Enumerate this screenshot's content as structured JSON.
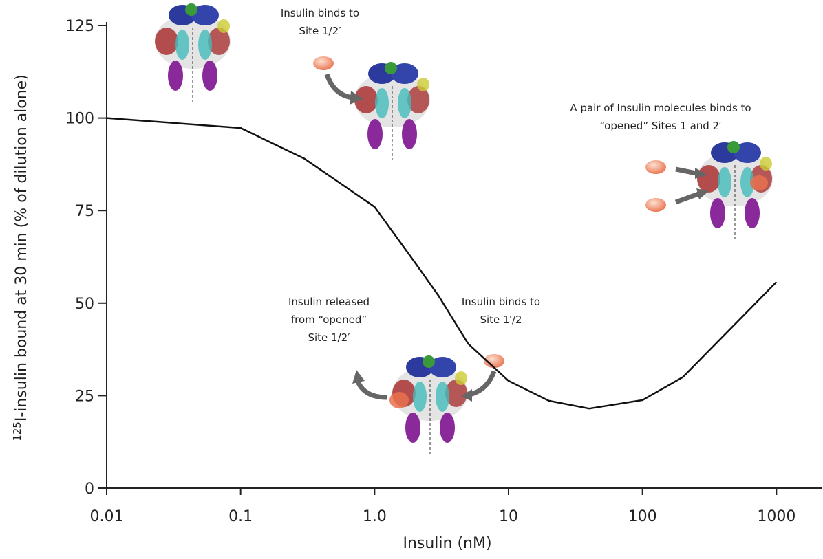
{
  "chart_data": {
    "type": "line",
    "y_label_superscript": "125",
    "y_label": "I-insulin bound at 30 min (% of dilution alone)",
    "x_label": "Insulin (nM)",
    "x": [
      0.01,
      0.1,
      0.3,
      1,
      2,
      3,
      5,
      10,
      20,
      40,
      100,
      200,
      500,
      1000
    ],
    "values": [
      100,
      97.3,
      89,
      76,
      61,
      52,
      39,
      29,
      23.6,
      21.5,
      23.8,
      30,
      44.6,
      55.7
    ],
    "color": "#111111",
    "x_scale": "log",
    "xlim": [
      0.01,
      2200
    ],
    "xticks": [
      0.01,
      0.1,
      {
        "value": 1,
        "label": "1.0"
      },
      10,
      100,
      1000
    ],
    "ylim": [
      0,
      125
    ],
    "yticks": [
      0,
      25,
      50,
      75,
      100,
      125
    ],
    "annotations": [
      {
        "lines": [
          "Insulin binds to",
          "Site 1/2′"
        ]
      },
      {
        "lines": [
          "A pair of Insulin molecules binds to",
          "“opened” Sites 1 and 2′"
        ]
      },
      {
        "lines": [
          "Insulin released",
          "from “opened”",
          "Site 1/2′"
        ]
      },
      {
        "lines": [
          "Insulin binds to",
          "Site 1′/2"
        ]
      }
    ]
  }
}
